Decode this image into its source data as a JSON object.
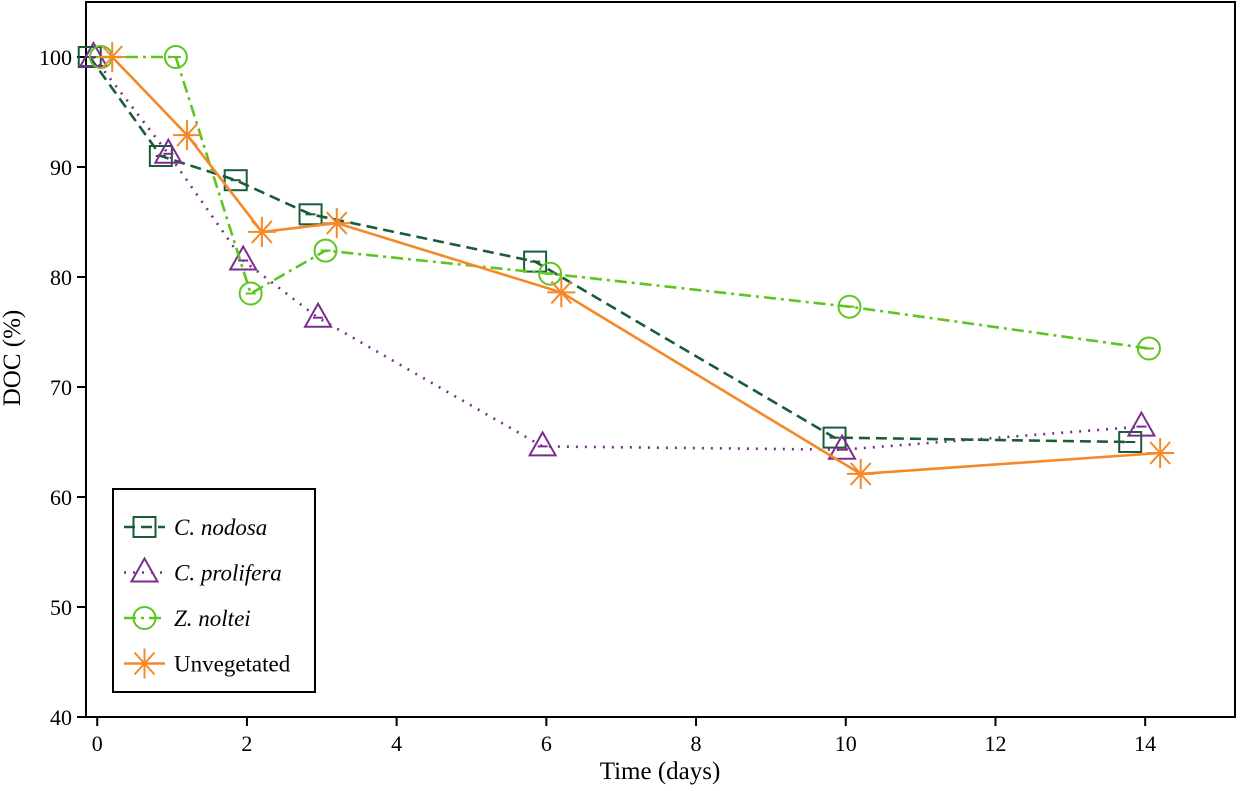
{
  "chart_data": {
    "type": "line",
    "title": "",
    "xlabel": "Time (days)",
    "ylabel": "DOC (%)",
    "xlim": [
      -0.15,
      15.2
    ],
    "ylim": [
      40,
      105
    ],
    "xticks": [
      0,
      2,
      4,
      6,
      8,
      10,
      12,
      14
    ],
    "yticks": [
      40,
      50,
      60,
      70,
      80,
      90,
      100
    ],
    "legend_position": "bottom-left",
    "grid": false,
    "series": [
      {
        "name": "C. nodosa",
        "italic": true,
        "color": "#1a5c38",
        "dash": "dashed",
        "marker": "square",
        "x": [
          -0.1,
          0.85,
          1.85,
          2.85,
          5.85,
          9.85,
          13.8
        ],
        "y": [
          100,
          91,
          88.8,
          85.7,
          81.4,
          65.4,
          65
        ]
      },
      {
        "name": "C. prolifera",
        "italic": true,
        "color": "#7b2d8e",
        "dash": "dotted",
        "marker": "triangle",
        "x": [
          -0.05,
          0.95,
          1.95,
          2.95,
          5.95,
          9.95,
          13.95
        ],
        "y": [
          100,
          91.2,
          81.5,
          76.3,
          64.6,
          64.3,
          66.4
        ]
      },
      {
        "name": "Z. noltei",
        "italic": true,
        "color": "#5ec41f",
        "dash": "dashdot",
        "marker": "circle",
        "x": [
          0.05,
          1.05,
          2.05,
          3.05,
          6.05,
          10.05,
          14.05
        ],
        "y": [
          100,
          100,
          78.5,
          82.4,
          80.3,
          77.3,
          73.5
        ]
      },
      {
        "name": "Unvegetated",
        "italic": false,
        "color": "#f5892a",
        "dash": "solid",
        "marker": "asterisk",
        "x": [
          0.2,
          1.2,
          2.2,
          3.2,
          6.2,
          10.2,
          14.2
        ],
        "y": [
          100,
          92.9,
          84.1,
          84.9,
          78.6,
          62.1,
          64
        ]
      }
    ]
  }
}
